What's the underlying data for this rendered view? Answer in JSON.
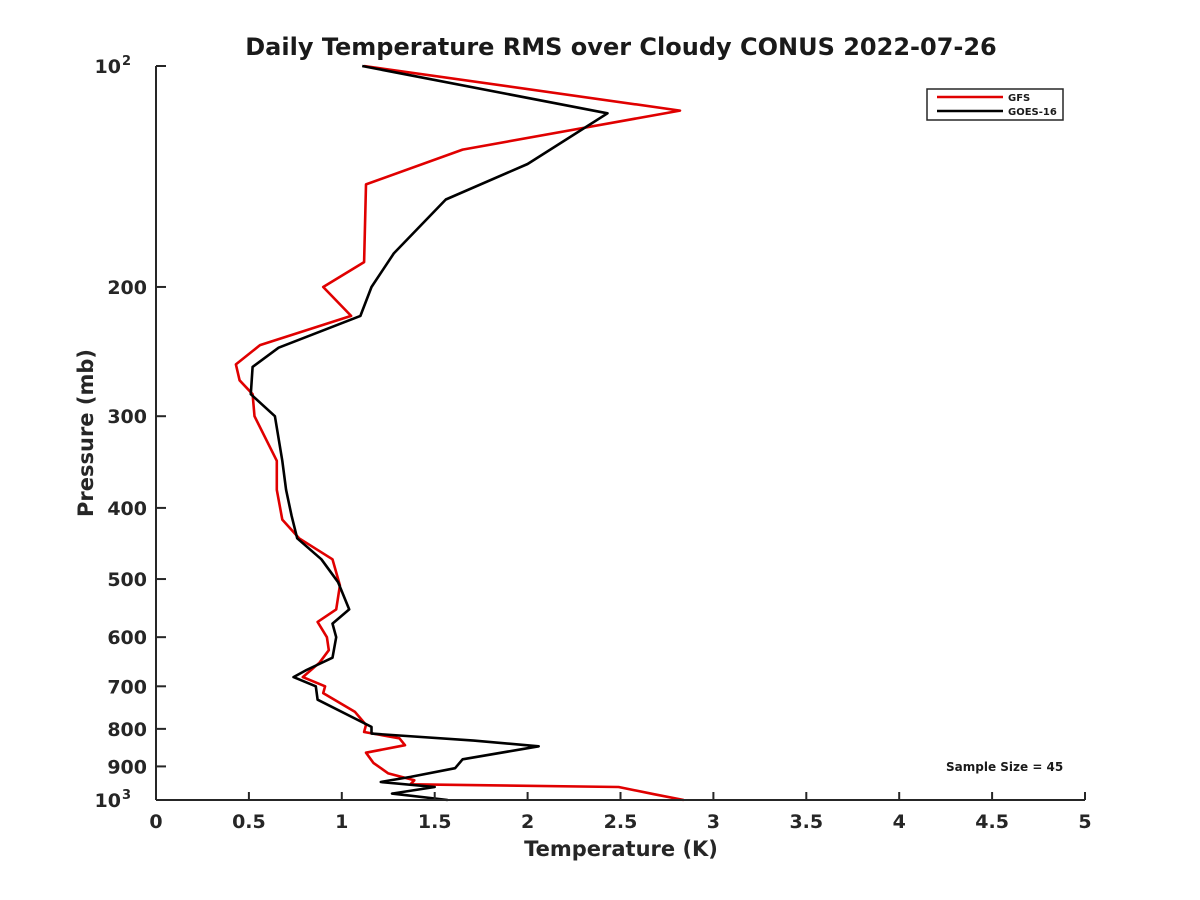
{
  "chart_data": {
    "type": "line",
    "title": "Daily Temperature RMS over Cloudy CONUS 2022-07-26",
    "xlabel": "Temperature (K)",
    "ylabel": "Pressure (mb)",
    "xlim": [
      0,
      5
    ],
    "ylim": [
      100,
      1000
    ],
    "y_scale": "log",
    "y_reversed": true,
    "grid": false,
    "legend_position": "top-right",
    "x_ticks": [
      {
        "value": 0,
        "label": "0"
      },
      {
        "value": 0.5,
        "label": "0.5"
      },
      {
        "value": 1,
        "label": "1"
      },
      {
        "value": 1.5,
        "label": "1.5"
      },
      {
        "value": 2,
        "label": "2"
      },
      {
        "value": 2.5,
        "label": "2.5"
      },
      {
        "value": 3,
        "label": "3"
      },
      {
        "value": 3.5,
        "label": "3.5"
      },
      {
        "value": 4,
        "label": "4"
      },
      {
        "value": 4.5,
        "label": "4.5"
      },
      {
        "value": 5,
        "label": "5"
      }
    ],
    "y_ticks": [
      {
        "value": 100,
        "label": "10",
        "exponent": "2"
      },
      {
        "value": 200,
        "label": "200"
      },
      {
        "value": 300,
        "label": "300"
      },
      {
        "value": 400,
        "label": "400"
      },
      {
        "value": 500,
        "label": "500"
      },
      {
        "value": 600,
        "label": "600"
      },
      {
        "value": 700,
        "label": "700"
      },
      {
        "value": 800,
        "label": "800"
      },
      {
        "value": 900,
        "label": "900"
      },
      {
        "value": 1000,
        "label": "10",
        "exponent": "3"
      }
    ],
    "annotation": "Sample Size = 45",
    "series": [
      {
        "name": "GFS",
        "color": "#e00000",
        "points": [
          [
            1.12,
            100
          ],
          [
            2.82,
            115
          ],
          [
            1.65,
            130
          ],
          [
            1.13,
            145
          ],
          [
            1.12,
            185
          ],
          [
            0.9,
            200
          ],
          [
            1.05,
            219
          ],
          [
            0.56,
            240
          ],
          [
            0.43,
            255
          ],
          [
            0.45,
            268
          ],
          [
            0.52,
            280
          ],
          [
            0.53,
            300
          ],
          [
            0.65,
            345
          ],
          [
            0.65,
            378
          ],
          [
            0.68,
            415
          ],
          [
            0.77,
            440
          ],
          [
            0.95,
            470
          ],
          [
            0.99,
            510
          ],
          [
            0.97,
            550
          ],
          [
            0.87,
            572
          ],
          [
            0.92,
            600
          ],
          [
            0.93,
            625
          ],
          [
            0.88,
            650
          ],
          [
            0.79,
            680
          ],
          [
            0.91,
            700
          ],
          [
            0.9,
            715
          ],
          [
            1.07,
            758
          ],
          [
            1.13,
            790
          ],
          [
            1.12,
            808
          ],
          [
            1.31,
            824
          ],
          [
            1.34,
            842
          ],
          [
            1.13,
            862
          ],
          [
            1.17,
            890
          ],
          [
            1.25,
            920
          ],
          [
            1.39,
            940
          ],
          [
            1.37,
            952
          ],
          [
            2.49,
            960
          ],
          [
            2.68,
            982
          ],
          [
            2.84,
            1000
          ]
        ]
      },
      {
        "name": "GOES-16",
        "color": "#000000",
        "points": [
          [
            1.11,
            100
          ],
          [
            2.43,
            116
          ],
          [
            2.0,
            136
          ],
          [
            1.56,
            152
          ],
          [
            1.28,
            180
          ],
          [
            1.16,
            200
          ],
          [
            1.1,
            219
          ],
          [
            0.66,
            242
          ],
          [
            0.52,
            257
          ],
          [
            0.51,
            280
          ],
          [
            0.64,
            300
          ],
          [
            0.68,
            345
          ],
          [
            0.7,
            378
          ],
          [
            0.73,
            410
          ],
          [
            0.76,
            440
          ],
          [
            0.89,
            470
          ],
          [
            0.98,
            505
          ],
          [
            1.04,
            550
          ],
          [
            0.95,
            575
          ],
          [
            0.97,
            600
          ],
          [
            0.95,
            640
          ],
          [
            0.81,
            665
          ],
          [
            0.74,
            680
          ],
          [
            0.86,
            700
          ],
          [
            0.87,
            730
          ],
          [
            1.16,
            795
          ],
          [
            1.16,
            812
          ],
          [
            1.71,
            830
          ],
          [
            2.06,
            845
          ],
          [
            1.65,
            880
          ],
          [
            1.61,
            905
          ],
          [
            1.37,
            930
          ],
          [
            1.21,
            945
          ],
          [
            1.5,
            960
          ],
          [
            1.27,
            980
          ],
          [
            1.57,
            1000
          ]
        ]
      }
    ]
  }
}
